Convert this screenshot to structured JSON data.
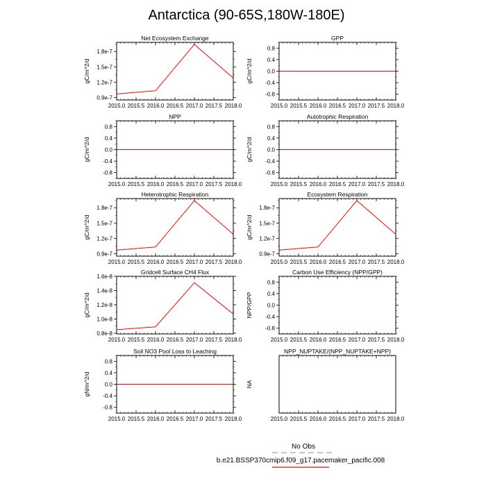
{
  "figure": {
    "title": "Antarctica (90-65S,180W-180E)"
  },
  "chart_data": [
    {
      "type": "line",
      "title": "Net Ecosystem Exchange",
      "ylabel": "gC/m^2/d",
      "x": [
        2015.0,
        2016.0,
        2017.0,
        2018.0
      ],
      "series": [
        {
          "name": "b.e21.BSSP370cmip6.f09_g17.pacemaker_pacific.008",
          "color": "#ff0000",
          "values": [
            9.7e-08,
            1.03e-07,
            1.94e-07,
            1.28e-07
          ]
        }
      ],
      "xlim": [
        2015.0,
        2018.0
      ],
      "ylim": [
        8.5e-08,
        1.98e-07
      ],
      "xticks": [
        2015.0,
        2015.5,
        2016.0,
        2016.5,
        2017.0,
        2017.5,
        2018.0
      ],
      "xtick_labels": [
        "2015.0",
        "2015.5",
        "2016.0",
        "2016.5",
        "2017.0",
        "2017.5",
        "2018.0"
      ],
      "yticks": [
        9e-08,
        1.2e-07,
        1.5e-07,
        1.8e-07
      ],
      "ytick_labels": [
        "0.9e-7",
        "1.2e-7",
        "1.5e-7",
        "1.8e-7"
      ]
    },
    {
      "type": "line",
      "title": "GPP",
      "ylabel": "gC/m^2/d",
      "x": [
        2015.0,
        2016.0,
        2017.0,
        2018.0
      ],
      "series": [
        {
          "name": "b.e21.BSSP370cmip6.f09_g17.pacemaker_pacific.008",
          "color": "#ff0000",
          "values": [
            0,
            0,
            0,
            0
          ]
        }
      ],
      "xlim": [
        2015.0,
        2018.0
      ],
      "ylim": [
        -1,
        1
      ],
      "xticks": [
        2015.0,
        2015.5,
        2016.0,
        2016.5,
        2017.0,
        2017.5,
        2018.0
      ],
      "xtick_labels": [
        "2015.0",
        "2015.5",
        "2016.0",
        "2016.5",
        "2017.0",
        "2017.5",
        "2018.0"
      ],
      "yticks": [
        -0.8,
        -0.4,
        0.0,
        0.4,
        0.8
      ],
      "ytick_labels": [
        "-0.8",
        "-0.4",
        "0.0",
        "0.4",
        "0.8"
      ]
    },
    {
      "type": "line",
      "title": "NPP",
      "ylabel": "gC/m^2/d",
      "x": [
        2015.0,
        2016.0,
        2017.0,
        2018.0
      ],
      "series": [
        {
          "name": "b.e21.BSSP370cmip6.f09_g17.pacemaker_pacific.008",
          "color": "#ff0000",
          "values": [
            0,
            0,
            0,
            0
          ]
        }
      ],
      "xlim": [
        2015.0,
        2018.0
      ],
      "ylim": [
        -1,
        1
      ],
      "xticks": [
        2015.0,
        2015.5,
        2016.0,
        2016.5,
        2017.0,
        2017.5,
        2018.0
      ],
      "xtick_labels": [
        "2015.0",
        "2015.5",
        "2016.0",
        "2016.5",
        "2017.0",
        "2017.5",
        "2018.0"
      ],
      "yticks": [
        -0.8,
        -0.4,
        0.0,
        0.4,
        0.8
      ],
      "ytick_labels": [
        "-0.8",
        "-0.4",
        "0.0",
        "0.4",
        "0.8"
      ]
    },
    {
      "type": "line",
      "title": "Autotrophic Respiration",
      "ylabel": "gC/m^2/d",
      "x": [
        2015.0,
        2016.0,
        2017.0,
        2018.0
      ],
      "series": [
        {
          "name": "b.e21.BSSP370cmip6.f09_g17.pacemaker_pacific.008",
          "color": "#ff0000",
          "values": [
            0,
            0,
            0,
            0
          ]
        }
      ],
      "xlim": [
        2015.0,
        2018.0
      ],
      "ylim": [
        -1,
        1
      ],
      "xticks": [
        2015.0,
        2015.5,
        2016.0,
        2016.5,
        2017.0,
        2017.5,
        2018.0
      ],
      "xtick_labels": [
        "2015.0",
        "2015.5",
        "2016.0",
        "2016.5",
        "2017.0",
        "2017.5",
        "2018.0"
      ],
      "yticks": [
        -0.8,
        -0.4,
        0.0,
        0.4,
        0.8
      ],
      "ytick_labels": [
        "-0.8",
        "-0.4",
        "0.0",
        "0.4",
        "0.8"
      ]
    },
    {
      "type": "line",
      "title": "Heterotrophic Respiration",
      "ylabel": "gC/m^2/d",
      "x": [
        2015.0,
        2016.0,
        2017.0,
        2018.0
      ],
      "series": [
        {
          "name": "b.e21.BSSP370cmip6.f09_g17.pacemaker_pacific.008",
          "color": "#ff0000",
          "values": [
            9.7e-08,
            1.03e-07,
            1.94e-07,
            1.28e-07
          ]
        }
      ],
      "xlim": [
        2015.0,
        2018.0
      ],
      "ylim": [
        8.5e-08,
        1.98e-07
      ],
      "xticks": [
        2015.0,
        2015.5,
        2016.0,
        2016.5,
        2017.0,
        2017.5,
        2018.0
      ],
      "xtick_labels": [
        "2015.0",
        "2015.5",
        "2016.0",
        "2016.5",
        "2017.0",
        "2017.5",
        "2018.0"
      ],
      "yticks": [
        9e-08,
        1.2e-07,
        1.5e-07,
        1.8e-07
      ],
      "ytick_labels": [
        "0.9e-7",
        "1.2e-7",
        "1.5e-7",
        "1.8e-7"
      ]
    },
    {
      "type": "line",
      "title": "Ecosystem Respiration",
      "ylabel": "gC/m^2/d",
      "x": [
        2015.0,
        2016.0,
        2017.0,
        2018.0
      ],
      "series": [
        {
          "name": "b.e21.BSSP370cmip6.f09_g17.pacemaker_pacific.008",
          "color": "#ff0000",
          "values": [
            9.7e-08,
            1.03e-07,
            1.94e-07,
            1.28e-07
          ]
        }
      ],
      "xlim": [
        2015.0,
        2018.0
      ],
      "ylim": [
        8.5e-08,
        1.98e-07
      ],
      "xticks": [
        2015.0,
        2015.5,
        2016.0,
        2016.5,
        2017.0,
        2017.5,
        2018.0
      ],
      "xtick_labels": [
        "2015.0",
        "2015.5",
        "2016.0",
        "2016.5",
        "2017.0",
        "2017.5",
        "2018.0"
      ],
      "yticks": [
        9e-08,
        1.2e-07,
        1.5e-07,
        1.8e-07
      ],
      "ytick_labels": [
        "0.9e-7",
        "1.2e-7",
        "1.5e-7",
        "1.8e-7"
      ]
    },
    {
      "type": "line",
      "title": "Gridcell Surface CH4 Flux",
      "ylabel": "gC/m^2/d",
      "x": [
        2015.0,
        2016.0,
        2017.0,
        2018.0
      ],
      "series": [
        {
          "name": "b.e21.BSSP370cmip6.f09_g17.pacemaker_pacific.008",
          "color": "#ff0000",
          "values": [
            8.5e-09,
            8.9e-09,
            1.51e-08,
            1.07e-08
          ]
        }
      ],
      "xlim": [
        2015.0,
        2018.0
      ],
      "ylim": [
        7.9e-09,
        1.6e-08
      ],
      "xticks": [
        2015.0,
        2015.5,
        2016.0,
        2016.5,
        2017.0,
        2017.5,
        2018.0
      ],
      "xtick_labels": [
        "2015.0",
        "2015.5",
        "2016.0",
        "2016.5",
        "2017.0",
        "2017.5",
        "2018.0"
      ],
      "yticks": [
        8e-09,
        1e-08,
        1.2e-08,
        1.4e-08,
        1.6e-08
      ],
      "ytick_labels": [
        "0.8e-8",
        "1.0e-8",
        "1.2e-8",
        "1.4e-8",
        "1.6e-8"
      ]
    },
    {
      "type": "line",
      "title": "Carbon Use Efficiency (NPP/GPP)",
      "ylabel": "NPP/GPP",
      "x": [
        2015.0,
        2016.0,
        2017.0,
        2018.0
      ],
      "series": [],
      "xlim": [
        2015.0,
        2018.0
      ],
      "ylim": [
        -1,
        1
      ],
      "xticks": [
        2015.0,
        2015.5,
        2016.0,
        2016.5,
        2017.0,
        2017.5,
        2018.0
      ],
      "xtick_labels": [
        "2015.0",
        "2015.5",
        "2016.0",
        "2016.5",
        "2017.0",
        "2017.5",
        "2018.0"
      ],
      "yticks": [
        -0.8,
        -0.4,
        0.0,
        0.4,
        0.8
      ],
      "ytick_labels": [
        "-0.8",
        "-0.4",
        "0.0",
        "0.4",
        "0.8"
      ]
    },
    {
      "type": "line",
      "title": "Soil NO3 Pool Loss to Leaching",
      "ylabel": "gN/m^2/d",
      "x": [
        2015.0,
        2016.0,
        2017.0,
        2018.0
      ],
      "series": [
        {
          "name": "b.e21.BSSP370cmip6.f09_g17.pacemaker_pacific.008",
          "color": "#ff0000",
          "values": [
            0,
            0,
            0,
            0
          ]
        }
      ],
      "xlim": [
        2015.0,
        2018.0
      ],
      "ylim": [
        -1,
        1
      ],
      "xticks": [
        2015.0,
        2015.5,
        2016.0,
        2016.5,
        2017.0,
        2017.5,
        2018.0
      ],
      "xtick_labels": [
        "2015.0",
        "2015.5",
        "2016.0",
        "2016.5",
        "2017.0",
        "2017.5",
        "2018.0"
      ],
      "yticks": [
        -0.8,
        -0.4,
        0.0,
        0.4,
        0.8
      ],
      "ytick_labels": [
        "-0.8",
        "-0.4",
        "0.0",
        "0.4",
        "0.8"
      ]
    },
    {
      "type": "line",
      "title": "NPP_NUPTAKE/(NPP_NUPTAKE+NPP)",
      "ylabel": "NA",
      "x": [
        2015.0,
        2016.0,
        2017.0,
        2018.0
      ],
      "series": [],
      "xlim": [
        2015.0,
        2018.0
      ],
      "ylim": [
        -1,
        1
      ],
      "xticks": [
        2015.0,
        2015.5,
        2016.0,
        2016.5,
        2017.0,
        2017.5,
        2018.0
      ],
      "xtick_labels": [
        "2015.0",
        "2015.5",
        "2016.0",
        "2016.5",
        "2017.0",
        "2017.5",
        "2018.0"
      ],
      "yticks": [],
      "ytick_labels": []
    }
  ],
  "legend": {
    "entries": [
      {
        "label": "No Obs",
        "color": "#9999ff",
        "style": "dashed"
      },
      {
        "label": "b.e21.BSSP370cmip6.f09_g17.pacemaker_pacific.008",
        "color": "#ff0000",
        "style": "solid"
      }
    ]
  }
}
